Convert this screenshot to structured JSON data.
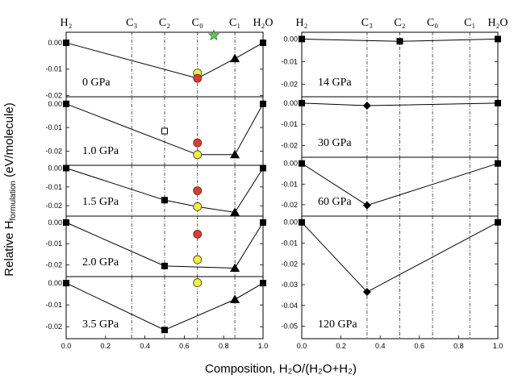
{
  "chart_data": {
    "type": "line",
    "ylabel_prefix": "Relative H",
    "ylabel_sub": "formulation",
    "ylabel_suffix": " (eV/molecule)",
    "xlabel": "Composition, H₂O/(H₂O+H₂)",
    "top_labels": [
      {
        "text": "H₂",
        "x": 0.0
      },
      {
        "text": "C₃",
        "x": 0.333
      },
      {
        "text": "C₂",
        "x": 0.5
      },
      {
        "text": "C₀",
        "x": 0.667
      },
      {
        "text": "C₁",
        "x": 0.857
      },
      {
        "text": "H₂O",
        "x": 1.0
      }
    ],
    "vlines_x": [
      0.333,
      0.5,
      0.667,
      0.857
    ],
    "colors": {
      "red": "#e8382a",
      "yellow": "#f5f03a",
      "green": "#5ad15a",
      "line": "#000000"
    },
    "x_ticks": [
      "0.0",
      "0.2",
      "0.4",
      "0.6",
      "0.8",
      "1.0"
    ],
    "x_tick_values": [
      0.0,
      0.2,
      0.4,
      0.6,
      0.8,
      1.0
    ],
    "panels": [
      {
        "column": "left",
        "pressure": "0 GPa",
        "ylim": [
          -0.0205,
          0.004
        ],
        "yticks": [
          0.0,
          -0.01,
          -0.02
        ],
        "yticklabels": [
          "0.00",
          "-0.01",
          "-0.02"
        ],
        "series": [
          {
            "x": [
              0.0,
              0.667,
              0.857,
              1.0
            ],
            "y": [
              0.0,
              -0.0135,
              -0.006,
              0.0
            ],
            "markers": [
              "square",
              "none",
              "triangle",
              "square"
            ]
          }
        ],
        "extra_points": [
          {
            "x": 0.667,
            "y": -0.0115,
            "marker": "circle",
            "color": "yellow"
          },
          {
            "x": 0.667,
            "y": -0.0135,
            "marker": "circle",
            "color": "red"
          },
          {
            "x": 0.75,
            "y": 0.0028,
            "marker": "star",
            "color": "green"
          }
        ]
      },
      {
        "column": "left",
        "pressure": "1.0 GPa",
        "ylim": [
          -0.026,
          0.003
        ],
        "yticks": [
          0.0,
          -0.01,
          -0.02
        ],
        "yticklabels": [
          "0.00",
          "-0.01",
          "-0.02"
        ],
        "series": [
          {
            "x": [
              0.0,
              0.667,
              0.857,
              1.0
            ],
            "y": [
              0.0,
              -0.0215,
              -0.0215,
              0.0
            ],
            "markers": [
              "square",
              "none",
              "triangle",
              "square"
            ]
          }
        ],
        "extra_points": [
          {
            "x": 0.5,
            "y": -0.0115,
            "marker": "open-square",
            "color": "white"
          },
          {
            "x": 0.667,
            "y": -0.0165,
            "marker": "circle",
            "color": "red"
          },
          {
            "x": 0.667,
            "y": -0.0215,
            "marker": "circle",
            "color": "yellow"
          }
        ]
      },
      {
        "column": "left",
        "pressure": "1.5 GPa",
        "ylim": [
          -0.0255,
          0.0015
        ],
        "yticks": [
          0.0,
          -0.01,
          -0.02
        ],
        "yticklabels": [
          "0.00",
          "-0.01",
          "-0.02"
        ],
        "series": [
          {
            "x": [
              0.0,
              0.5,
              0.667,
              0.857,
              1.0
            ],
            "y": [
              0.0,
              -0.017,
              -0.0205,
              -0.0235,
              0.0
            ],
            "markers": [
              "square",
              "square",
              "none",
              "triangle",
              "square"
            ]
          }
        ],
        "extra_points": [
          {
            "x": 0.667,
            "y": -0.012,
            "marker": "circle",
            "color": "red"
          },
          {
            "x": 0.667,
            "y": -0.0205,
            "marker": "circle",
            "color": "yellow"
          }
        ]
      },
      {
        "column": "left",
        "pressure": "2.0 GPa",
        "ylim": [
          -0.0255,
          0.003
        ],
        "yticks": [
          0.0,
          -0.01,
          -0.02
        ],
        "yticklabels": [
          "0.00",
          "-0.01",
          "-0.02"
        ],
        "series": [
          {
            "x": [
              0.0,
              0.5,
              0.857,
              1.0
            ],
            "y": [
              0.0,
              -0.0205,
              -0.0215,
              0.0
            ],
            "markers": [
              "square",
              "square",
              "triangle",
              "square"
            ]
          }
        ],
        "extra_points": [
          {
            "x": 0.667,
            "y": -0.0055,
            "marker": "circle",
            "color": "red"
          },
          {
            "x": 0.667,
            "y": -0.0175,
            "marker": "circle",
            "color": "yellow"
          }
        ]
      },
      {
        "column": "left",
        "pressure": "3.5 GPa",
        "ylim": [
          -0.0255,
          0.003
        ],
        "yticks": [
          0.0,
          -0.01,
          -0.02
        ],
        "yticklabels": [
          "0.00",
          "-0.01",
          "-0.02"
        ],
        "series": [
          {
            "x": [
              0.0,
              0.5,
              0.857,
              1.0
            ],
            "y": [
              0.0,
              -0.0215,
              -0.0075,
              0.0
            ],
            "markers": [
              "square",
              "square",
              "triangle",
              "square"
            ]
          }
        ],
        "extra_points": [
          {
            "x": 0.667,
            "y": 0.0002,
            "marker": "circle",
            "color": "yellow"
          }
        ]
      },
      {
        "column": "right",
        "pressure": "14 GPa",
        "ylim": [
          -0.0255,
          0.003
        ],
        "yticks": [
          0.0,
          -0.01,
          -0.02
        ],
        "yticklabels": [
          "0.00",
          "-0.01",
          "-0.02"
        ],
        "series": [
          {
            "x": [
              0.0,
              0.5,
              1.0
            ],
            "y": [
              0.0,
              -0.001,
              0.0
            ],
            "markers": [
              "square",
              "square",
              "square"
            ]
          }
        ],
        "extra_points": []
      },
      {
        "column": "right",
        "pressure": "30 GPa",
        "ylim": [
          -0.0255,
          0.003
        ],
        "yticks": [
          0.0,
          -0.01,
          -0.02
        ],
        "yticklabels": [
          "0.00",
          "-0.01",
          "-0.02"
        ],
        "series": [
          {
            "x": [
              0.0,
              0.333,
              1.0
            ],
            "y": [
              0.0,
              -0.0012,
              0.0
            ],
            "markers": [
              "square",
              "diamond",
              "square"
            ]
          }
        ],
        "extra_points": []
      },
      {
        "column": "right",
        "pressure": "60 GPa",
        "ylim": [
          -0.0255,
          0.003
        ],
        "yticks": [
          0.0,
          -0.01,
          -0.02
        ],
        "yticklabels": [
          "0.00",
          "-0.01",
          "-0.02"
        ],
        "series": [
          {
            "x": [
              0.0,
              0.333,
              1.0
            ],
            "y": [
              0.0,
              -0.0203,
              0.0
            ],
            "markers": [
              "square",
              "diamond",
              "square"
            ]
          }
        ],
        "extra_points": []
      },
      {
        "column": "right",
        "pressure": "120 GPa",
        "ylim": [
          -0.056,
          0.003
        ],
        "yticks": [
          0.0,
          -0.01,
          -0.02,
          -0.03,
          -0.04,
          -0.05
        ],
        "yticklabels": [
          "0.00",
          "-0.01",
          "-0.02",
          "-0.03",
          "-0.04",
          "-0.05"
        ],
        "series": [
          {
            "x": [
              0.0,
              0.333,
              1.0
            ],
            "y": [
              0.0,
              -0.0335,
              0.0
            ],
            "markers": [
              "square",
              "diamond",
              "square"
            ]
          }
        ],
        "extra_points": []
      }
    ]
  }
}
